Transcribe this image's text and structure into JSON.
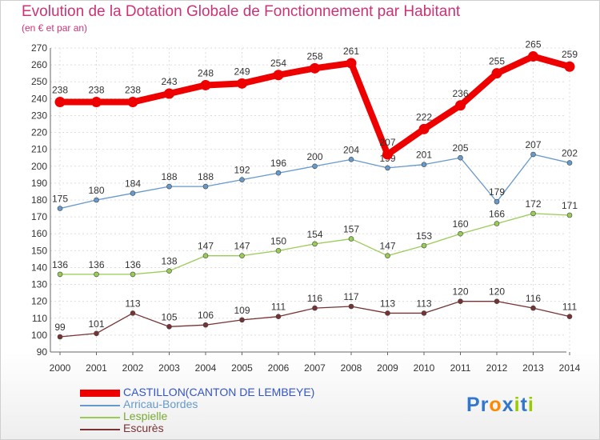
{
  "chart_data": {
    "type": "line",
    "title": "Evolution de la Dotation Globale de Fonctionnement par Habitant",
    "subtitle": "(en € et par an)",
    "x": [
      "2000",
      "2001",
      "2002",
      "2003",
      "2004",
      "2005",
      "2006",
      "2007",
      "2008",
      "2009",
      "2010",
      "2011",
      "2012",
      "2013",
      "2014"
    ],
    "yticks": [
      "270",
      "260",
      "250",
      "240",
      "230",
      "220",
      "210",
      "200",
      "190",
      "180",
      "170",
      "160",
      "150",
      "140",
      "130",
      "120",
      "110",
      "100",
      "90"
    ],
    "ylim": [
      90,
      270
    ],
    "grid": true,
    "legend_position": "bottom-left",
    "series": [
      {
        "name": "CASTILLON(CANTON DE LEMBEYE)",
        "color": "#ee0000",
        "label_color": "#3355cc",
        "values": [
          238,
          238,
          238,
          243,
          248,
          249,
          254,
          258,
          261,
          207,
          222,
          236,
          255,
          265,
          259
        ]
      },
      {
        "name": "Arricau-Bordes",
        "color": "#6699cc",
        "label_color": "#6699cc",
        "values": [
          175,
          180,
          184,
          188,
          188,
          192,
          196,
          200,
          204,
          199,
          201,
          205,
          179,
          207,
          202
        ]
      },
      {
        "name": "Lespielle",
        "color": "#99cc55",
        "label_color": "#77aa33",
        "values": [
          136,
          136,
          136,
          138,
          147,
          147,
          150,
          154,
          157,
          147,
          153,
          160,
          166,
          172,
          171
        ]
      },
      {
        "name": "Escurès",
        "color": "#773333",
        "label_color": "#773333",
        "values": [
          99,
          101,
          113,
          105,
          106,
          109,
          111,
          116,
          117,
          113,
          113,
          120,
          120,
          116,
          111
        ]
      }
    ]
  },
  "logo": {
    "text": "Proxiti",
    "letters": [
      "P",
      "r",
      "o",
      "x",
      "i",
      "t",
      "i"
    ],
    "colors": [
      "#3377cc",
      "#3377cc",
      "#ff8800",
      "#3377cc",
      "#99cc00",
      "#3377cc",
      "#99cc00"
    ]
  }
}
